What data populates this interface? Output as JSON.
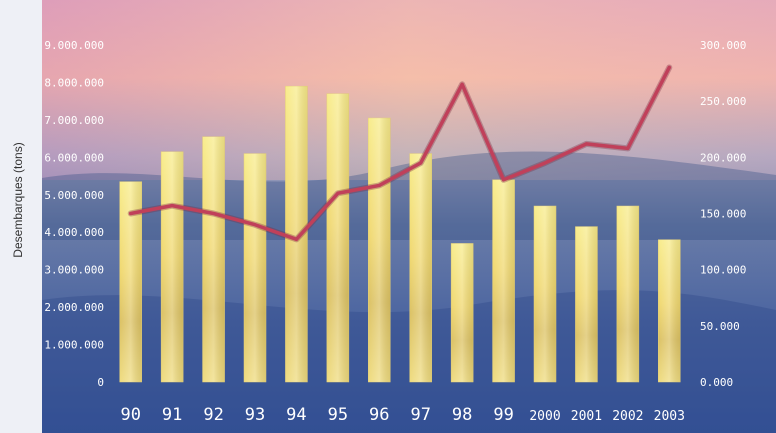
{
  "chart_data": {
    "type": "bar",
    "title": "",
    "xlabel": "",
    "ylabel": "Desembarques (tons)",
    "categories": [
      "90",
      "91",
      "92",
      "93",
      "94",
      "95",
      "96",
      "97",
      "98",
      "99",
      "2000",
      "2001",
      "2002",
      "2003"
    ],
    "series": [
      {
        "name": "",
        "type": "bar",
        "axis": "left",
        "color": "#f2e06a",
        "values": [
          5350000,
          6150000,
          6550000,
          6100000,
          7900000,
          7700000,
          7050000,
          6100000,
          3700000,
          5400000,
          4700000,
          4150000,
          4700000,
          3800000
        ]
      },
      {
        "name": "",
        "type": "line",
        "axis": "right",
        "color": "#c0405a",
        "values": [
          150000,
          157000,
          150000,
          140000,
          127000,
          168000,
          175000,
          195000,
          265000,
          180000,
          195000,
          212000,
          208000,
          280000
        ]
      }
    ],
    "y_left": {
      "ylim": [
        0,
        9000000
      ],
      "ticks": [
        0,
        1000000,
        2000000,
        3000000,
        4000000,
        5000000,
        6000000,
        7000000,
        8000000,
        9000000
      ],
      "tick_labels": [
        "0",
        "1.000.000",
        "2.000.000",
        "3.000.000",
        "4.000.000",
        "5.000.000",
        "6.000.000",
        "7.000.000",
        "8.000.000",
        "9.000.000"
      ]
    },
    "y_right": {
      "ylim": [
        0,
        300000
      ],
      "ticks": [
        0,
        50000,
        100000,
        150000,
        200000,
        250000,
        300000
      ],
      "tick_labels": [
        "0.000",
        "50.000",
        "100.000",
        "150.000",
        "200.000",
        "250.000",
        "300.000"
      ]
    },
    "grid": false,
    "legend": "none",
    "colors": {
      "tick_text": "#ffffff",
      "axis_label": "#333333",
      "sky_top": "#e9a9b4",
      "sea": "#3f5a92"
    }
  }
}
